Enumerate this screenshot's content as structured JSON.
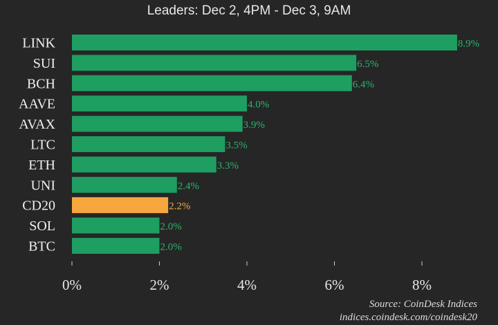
{
  "chart_data": {
    "type": "bar",
    "orientation": "horizontal",
    "subtitle": "Leaders: Dec 2, 4PM - Dec 3, 9AM",
    "categories": [
      "LINK",
      "SUI",
      "BCH",
      "AAVE",
      "AVAX",
      "LTC",
      "ETH",
      "UNI",
      "CD20",
      "SOL",
      "BTC"
    ],
    "values": [
      8.9,
      6.5,
      6.4,
      4.0,
      3.9,
      3.5,
      3.3,
      2.4,
      2.2,
      2.0,
      2.0
    ],
    "data_labels": [
      "8.9%",
      "6.5%",
      "6.4%",
      "4.0%",
      "3.9%",
      "3.5%",
      "3.3%",
      "2.4%",
      "2.2%",
      "2.0%",
      "2.0%"
    ],
    "highlight": "CD20",
    "xlim": [
      0,
      9
    ],
    "xticks": [
      0,
      2,
      4,
      6,
      8
    ],
    "xtick_labels": [
      "0%",
      "2%",
      "4%",
      "6%",
      "8%"
    ],
    "grid": false,
    "colors": {
      "default": "#1f9e62",
      "highlight": "#f6a83e",
      "label_default": "#2bb36f",
      "label_highlight": "#f6a83e"
    }
  },
  "source": {
    "line1": "Source: CoinDesk Indices",
    "line2": "indices.coindesk.com/coindesk20"
  }
}
